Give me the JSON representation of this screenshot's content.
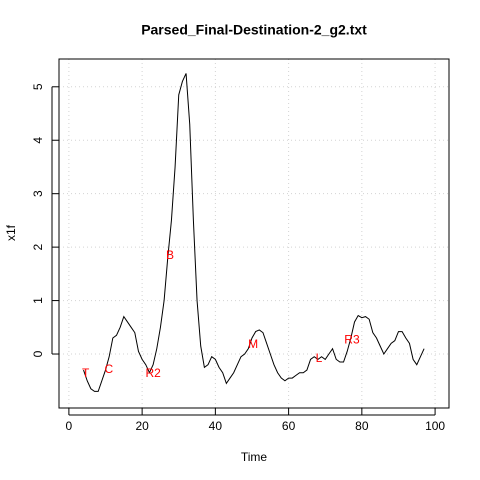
{
  "chart_data": {
    "type": "line",
    "title": "Parsed_Final-Destination-2_g2.txt",
    "xlabel": "Time",
    "ylabel": "x1f",
    "x": [
      4,
      5,
      6,
      7,
      8,
      9,
      10,
      11,
      12,
      13,
      14,
      15,
      16,
      17,
      18,
      19,
      20,
      21,
      22,
      23,
      24,
      25,
      26,
      27,
      28,
      29,
      30,
      31,
      32,
      33,
      34,
      35,
      36,
      37,
      38,
      39,
      40,
      41,
      42,
      43,
      44,
      45,
      46,
      47,
      48,
      49,
      50,
      51,
      52,
      53,
      54,
      55,
      56,
      57,
      58,
      59,
      60,
      61,
      62,
      63,
      64,
      65,
      66,
      67,
      68,
      69,
      70,
      71,
      72,
      73,
      74,
      75,
      76,
      77,
      78,
      79,
      80,
      81,
      82,
      83,
      84,
      85,
      86,
      87,
      88,
      89,
      90,
      91,
      92,
      93,
      94,
      95,
      96,
      97
    ],
    "series": [
      {
        "name": "x1f",
        "color": "#000000",
        "values": [
          -0.3,
          -0.5,
          -0.65,
          -0.7,
          -0.7,
          -0.5,
          -0.3,
          -0.05,
          0.3,
          0.35,
          0.5,
          0.7,
          0.6,
          0.5,
          0.4,
          0.05,
          -0.1,
          -0.2,
          -0.35,
          -0.2,
          0.1,
          0.5,
          1.0,
          1.8,
          2.5,
          3.5,
          4.85,
          5.1,
          5.25,
          4.3,
          2.5,
          1.0,
          0.15,
          -0.25,
          -0.2,
          -0.05,
          -0.1,
          -0.25,
          -0.35,
          -0.55,
          -0.45,
          -0.35,
          -0.2,
          -0.05,
          0.0,
          0.1,
          0.3,
          0.42,
          0.45,
          0.4,
          0.2,
          0.0,
          -0.2,
          -0.35,
          -0.45,
          -0.5,
          -0.45,
          -0.45,
          -0.4,
          -0.35,
          -0.35,
          -0.3,
          -0.1,
          -0.05,
          -0.1,
          -0.05,
          -0.1,
          0.0,
          0.1,
          -0.1,
          -0.15,
          -0.15,
          0.05,
          0.3,
          0.6,
          0.72,
          0.68,
          0.7,
          0.65,
          0.4,
          0.3,
          0.15,
          0.0,
          0.1,
          0.2,
          0.25,
          0.42,
          0.42,
          0.3,
          0.2,
          -0.1,
          -0.2,
          -0.05,
          0.1
        ]
      }
    ],
    "annotations": [
      {
        "text": "T",
        "x": 4.6,
        "y": -0.37
      },
      {
        "text": "C",
        "x": 10.9,
        "y": -0.3
      },
      {
        "text": "R2",
        "x": 23,
        "y": -0.37
      },
      {
        "text": "B",
        "x": 27.6,
        "y": 1.84
      },
      {
        "text": "M",
        "x": 50.3,
        "y": 0.17
      },
      {
        "text": "L",
        "x": 68.3,
        "y": -0.09
      },
      {
        "text": "R3",
        "x": 77.3,
        "y": 0.26
      }
    ],
    "annotation_color": "#ff0000",
    "xlim": [
      -2.7,
      103.8
    ],
    "ylim": [
      -1.01,
      5.52
    ],
    "xticks": [
      0,
      20,
      40,
      60,
      80,
      100
    ],
    "yticks": [
      0,
      1,
      2,
      3,
      4,
      5
    ],
    "grid": true
  }
}
